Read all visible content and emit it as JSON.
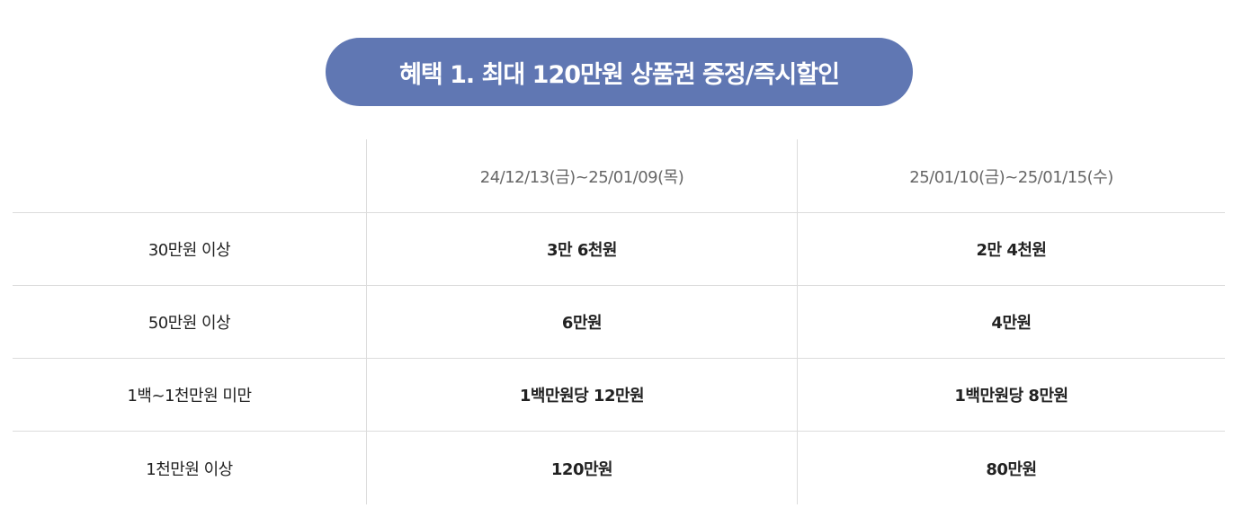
{
  "title": "혜택 1. 최대 120만원 상품권 증정/즉시할인",
  "colors": {
    "title_bg": "#6077b3",
    "title_text": "#ffffff",
    "grid": "#dcdcdc"
  },
  "table": {
    "headers": [
      "",
      "24/12/13(금)~25/01/09(목)",
      "25/01/10(금)~25/01/15(수)"
    ],
    "rows": [
      [
        "30만원 이상",
        "3만 6천원",
        "2만 4천원"
      ],
      [
        "50만원 이상",
        "6만원",
        "4만원"
      ],
      [
        "1백~1천만원 미만",
        "1백만원당 12만원",
        "1백만원당 8만원"
      ],
      [
        "1천만원 이상",
        "120만원",
        "80만원"
      ]
    ]
  }
}
